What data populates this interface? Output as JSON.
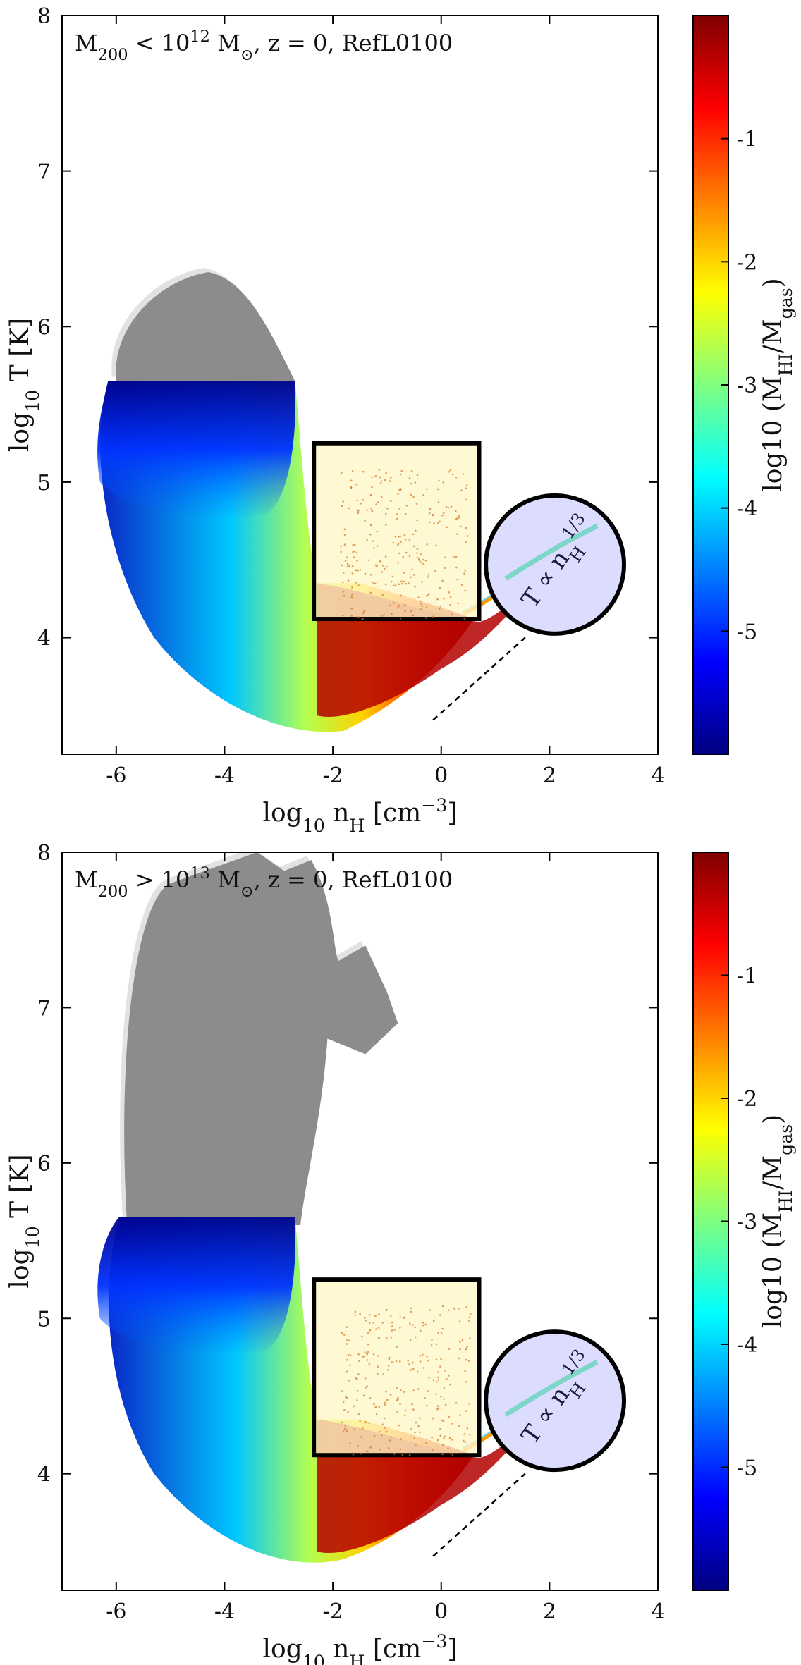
{
  "chart_data": [
    {
      "type": "scatter",
      "title": "M200 < 10^12 M☉, z = 0, RefL0100",
      "xlabel": "log10 nH [cm^-3]",
      "ylabel": "log10 T [K]",
      "xlim": [
        -7,
        4
      ],
      "ylim": [
        3.25,
        8
      ],
      "xticks": [
        -6,
        -4,
        -2,
        0,
        2,
        4
      ],
      "yticks": [
        4,
        5,
        6,
        7,
        8
      ],
      "colorbar": {
        "label": "log10 (MHI/Mgas)",
        "range": [
          -6,
          0
        ],
        "ticks": [
          -5,
          -4,
          -3,
          -2,
          -1
        ],
        "colormap": "jet"
      },
      "inset_box": {
        "x": [
          -2.35,
          0.7
        ],
        "y": [
          4.12,
          5.25
        ]
      },
      "inset_circle": {
        "center": [
          2.1,
          4.47
        ],
        "label": "T ∝ nH^(1/3)"
      },
      "dashed_line": {
        "x": [
          -0.15,
          1.55
        ],
        "y": [
          3.47,
          4.0
        ]
      },
      "grey_region": {
        "x_range": [
          -6.0,
          -2.7
        ],
        "y_range": [
          5.65,
          6.35
        ]
      },
      "colored_region": {
        "x_range": [
          -6.5,
          0.5
        ],
        "y_range": [
          3.4,
          5.65
        ]
      }
    },
    {
      "type": "scatter",
      "title": "M200 > 10^13 M☉, z = 0, RefL0100",
      "xlabel": "log10 nH [cm^-3]",
      "ylabel": "log10 T [K]",
      "xlim": [
        -7,
        4
      ],
      "ylim": [
        3.25,
        8
      ],
      "xticks": [
        -6,
        -4,
        -2,
        0,
        2,
        4
      ],
      "yticks": [
        4,
        5,
        6,
        7,
        8
      ],
      "colorbar": {
        "label": "log10 (MHI/Mgas)",
        "range": [
          -6,
          0
        ],
        "ticks": [
          -5,
          -4,
          -3,
          -2,
          -1
        ],
        "colormap": "jet"
      },
      "inset_box": {
        "x": [
          -2.35,
          0.7
        ],
        "y": [
          4.12,
          5.25
        ]
      },
      "inset_circle": {
        "center": [
          2.1,
          4.47
        ],
        "label": "T ∝ nH^(1/3)"
      },
      "dashed_line": {
        "x": [
          -0.15,
          1.55
        ],
        "y": [
          3.47,
          4.0
        ]
      },
      "grey_region": {
        "x_range": [
          -5.9,
          -0.8
        ],
        "y_range": [
          5.65,
          8.0
        ]
      },
      "colored_region": {
        "x_range": [
          -6.3,
          0.5
        ],
        "y_range": [
          3.45,
          5.65
        ]
      }
    }
  ]
}
